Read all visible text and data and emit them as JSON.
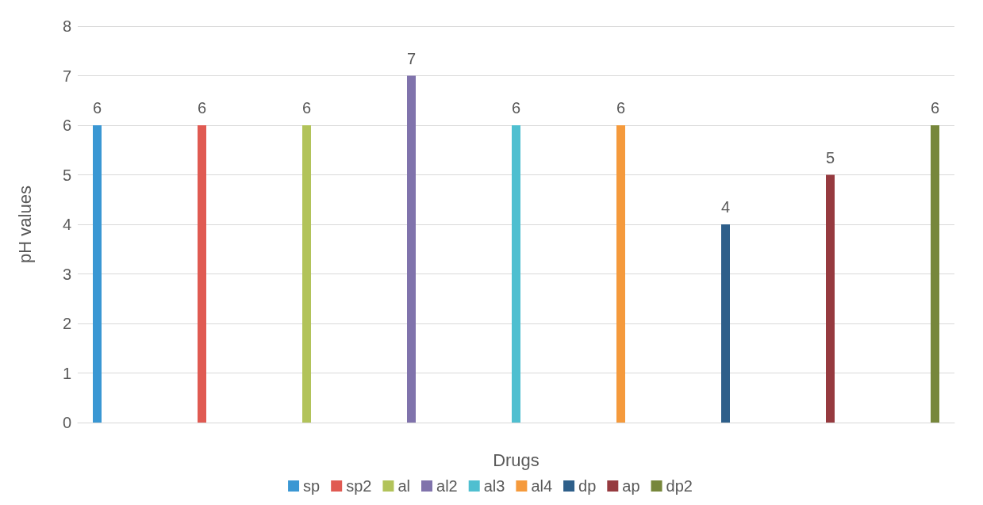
{
  "chart_data": {
    "type": "bar",
    "xlabel": "Drugs",
    "ylabel": "pH values",
    "categories": [
      null
    ],
    "series": [
      {
        "name": "sp",
        "color": "#3a97d3",
        "values": [
          6
        ]
      },
      {
        "name": "sp2",
        "color": "#e05a52",
        "values": [
          6
        ]
      },
      {
        "name": "al",
        "color": "#b2c35a",
        "values": [
          6
        ]
      },
      {
        "name": "al2",
        "color": "#8073ac",
        "values": [
          7
        ]
      },
      {
        "name": "al3",
        "color": "#4fbfd0",
        "values": [
          6
        ]
      },
      {
        "name": "al4",
        "color": "#f59a3c",
        "values": [
          6
        ]
      },
      {
        "name": "dp",
        "color": "#2e5f8a",
        "values": [
          4
        ]
      },
      {
        "name": "ap",
        "color": "#963a3f",
        "values": [
          5
        ]
      },
      {
        "name": "dp2",
        "color": "#77873b",
        "values": [
          6
        ]
      }
    ],
    "ylim": [
      0,
      8
    ],
    "yticks": [
      0,
      1,
      2,
      3,
      4,
      5,
      6,
      7,
      8
    ],
    "grid": "y",
    "legend": "bottom",
    "data_labels": true
  }
}
